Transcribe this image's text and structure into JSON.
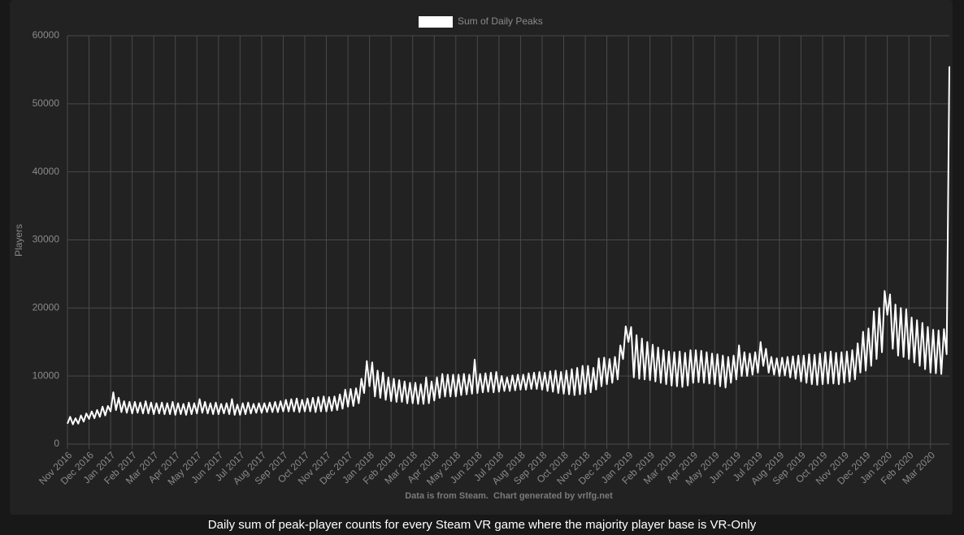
{
  "chart_data": {
    "type": "line",
    "caption": "Daily sum of peak-player counts for every Steam VR game where the majority player base is VR-Only",
    "footer": "Data is from Steam.  Chart generated by vrlfg.net",
    "y_label": "Players",
    "ylim": [
      0,
      60000
    ],
    "yticks": [
      0,
      10000,
      20000,
      30000,
      40000,
      50000,
      60000
    ],
    "grid": true,
    "legend": "top",
    "categories": [
      "Nov 2016",
      null,
      null,
      null,
      null,
      null,
      null,
      null,
      "Dec 2016",
      null,
      null,
      null,
      null,
      null,
      null,
      null,
      "Jan 2017",
      null,
      null,
      null,
      null,
      null,
      null,
      null,
      "Feb 2017",
      null,
      null,
      null,
      null,
      null,
      null,
      null,
      "Mar 2017",
      null,
      null,
      null,
      null,
      null,
      null,
      null,
      "Apr 2017",
      null,
      null,
      null,
      null,
      null,
      null,
      null,
      "May 2017",
      null,
      null,
      null,
      null,
      null,
      null,
      null,
      "Jun 2017",
      null,
      null,
      null,
      null,
      null,
      null,
      null,
      "Jul 2017",
      null,
      null,
      null,
      null,
      null,
      null,
      null,
      "Aug 2017",
      null,
      null,
      null,
      null,
      null,
      null,
      null,
      "Sep 2017",
      null,
      null,
      null,
      null,
      null,
      null,
      null,
      "Oct 2017",
      null,
      null,
      null,
      null,
      null,
      null,
      null,
      "Nov 2017",
      null,
      null,
      null,
      null,
      null,
      null,
      null,
      "Dec 2017",
      null,
      null,
      null,
      null,
      null,
      null,
      null,
      "Jan 2018",
      null,
      null,
      null,
      null,
      null,
      null,
      null,
      "Feb 2018",
      null,
      null,
      null,
      null,
      null,
      null,
      null,
      "Mar 2018",
      null,
      null,
      null,
      null,
      null,
      null,
      null,
      "Apr 2018",
      null,
      null,
      null,
      null,
      null,
      null,
      null,
      "May 2018",
      null,
      null,
      null,
      null,
      null,
      null,
      null,
      "Jun 2018",
      null,
      null,
      null,
      null,
      null,
      null,
      null,
      "Jul 2018",
      null,
      null,
      null,
      null,
      null,
      null,
      null,
      "Aug 2018",
      null,
      null,
      null,
      null,
      null,
      null,
      null,
      "Sep 2018",
      null,
      null,
      null,
      null,
      null,
      null,
      null,
      "Oct 2018",
      null,
      null,
      null,
      null,
      null,
      null,
      null,
      "Nov 2018",
      null,
      null,
      null,
      null,
      null,
      null,
      null,
      "Dec 2018",
      null,
      null,
      null,
      null,
      null,
      null,
      null,
      "Jan 2019",
      null,
      null,
      null,
      null,
      null,
      null,
      null,
      "Feb 2019",
      null,
      null,
      null,
      null,
      null,
      null,
      null,
      "Mar 2019",
      null,
      null,
      null,
      null,
      null,
      null,
      null,
      "Apr 2019",
      null,
      null,
      null,
      null,
      null,
      null,
      null,
      "May 2019",
      null,
      null,
      null,
      null,
      null,
      null,
      null,
      "Jun 2019",
      null,
      null,
      null,
      null,
      null,
      null,
      null,
      "Jul 2019",
      null,
      null,
      null,
      null,
      null,
      null,
      null,
      "Aug 2019",
      null,
      null,
      null,
      null,
      null,
      null,
      null,
      "Sep 2019",
      null,
      null,
      null,
      null,
      null,
      null,
      null,
      "Oct 2019",
      null,
      null,
      null,
      null,
      null,
      null,
      null,
      "Nov 2019",
      null,
      null,
      null,
      null,
      null,
      null,
      null,
      "Dec 2019",
      null,
      null,
      null,
      null,
      null,
      null,
      null,
      "Jan 2020",
      null,
      null,
      null,
      null,
      null,
      null,
      null,
      "Feb 2020",
      null,
      null,
      null,
      null,
      null,
      null,
      null,
      "Mar 2020",
      null,
      null,
      null,
      null,
      null,
      null,
      null
    ],
    "series": [
      {
        "name": "Sum of Daily Peaks",
        "color": "#ffffff",
        "values": [
          3000,
          4000,
          2900,
          3800,
          3000,
          4200,
          3300,
          4500,
          3700,
          4800,
          3800,
          5000,
          4000,
          5500,
          4200,
          5600,
          4800,
          7600,
          5000,
          6800,
          4700,
          6300,
          4600,
          6200,
          4500,
          6200,
          4600,
          6100,
          4500,
          6300,
          4500,
          6100,
          4400,
          6000,
          4500,
          6100,
          4400,
          6000,
          4400,
          6200,
          4300,
          6000,
          4400,
          5900,
          4300,
          6100,
          4400,
          6000,
          4500,
          6600,
          4600,
          6200,
          4500,
          6000,
          4400,
          6100,
          4400,
          5900,
          4500,
          6000,
          4400,
          6600,
          4300,
          5800,
          4300,
          6000,
          4400,
          6100,
          4500,
          5900,
          4600,
          6000,
          4600,
          6000,
          4700,
          6100,
          4700,
          6200,
          4700,
          6300,
          4800,
          6500,
          4800,
          6600,
          4800,
          6700,
          4700,
          6500,
          4800,
          6700,
          4800,
          6800,
          4700,
          6900,
          4800,
          7000,
          4800,
          6900,
          4900,
          7000,
          5000,
          7300,
          5200,
          8000,
          5500,
          8100,
          5600,
          8200,
          6000,
          9600,
          7500,
          12200,
          8500,
          12000,
          7000,
          10800,
          6800,
          10500,
          6500,
          9800,
          6300,
          9600,
          6200,
          9400,
          6200,
          9200,
          6000,
          9000,
          6000,
          9000,
          5900,
          8800,
          5900,
          9800,
          6000,
          9200,
          6400,
          9800,
          6800,
          10300,
          7000,
          10200,
          7000,
          10200,
          7000,
          10200,
          7200,
          10300,
          7300,
          10200,
          7400,
          12400,
          7500,
          10300,
          7600,
          10400,
          7700,
          10500,
          7600,
          10600,
          7700,
          10000,
          7800,
          9800,
          7800,
          10100,
          7900,
          10200,
          8000,
          10200,
          8000,
          10400,
          8100,
          10500,
          8100,
          10600,
          8000,
          10500,
          7800,
          10700,
          7700,
          10800,
          7500,
          10600,
          7400,
          10800,
          7300,
          11000,
          7200,
          11200,
          7300,
          11500,
          7400,
          11500,
          7600,
          11200,
          8000,
          12600,
          8500,
          12700,
          8800,
          12500,
          9000,
          12800,
          9500,
          14500,
          12500,
          17300,
          15000,
          17200,
          9800,
          16000,
          9600,
          15500,
          9500,
          15000,
          9400,
          14600,
          9200,
          14200,
          9000,
          13800,
          8800,
          13600,
          8600,
          13500,
          8500,
          13600,
          8400,
          13400,
          8600,
          13800,
          9000,
          13800,
          9100,
          13700,
          9000,
          13500,
          8900,
          13300,
          8800,
          13200,
          8500,
          13000,
          8300,
          12800,
          9000,
          13000,
          9500,
          14500,
          10000,
          13500,
          10000,
          13300,
          10200,
          13500,
          10500,
          15000,
          11500,
          14000,
          10500,
          12800,
          10200,
          12600,
          10000,
          12700,
          10100,
          12800,
          9800,
          12900,
          9600,
          13000,
          9200,
          13000,
          9000,
          13200,
          8800,
          13100,
          8700,
          13300,
          8800,
          13500,
          8900,
          13600,
          8900,
          13400,
          8800,
          13500,
          9000,
          13600,
          9200,
          13800,
          9500,
          14800,
          10500,
          16500,
          10800,
          17000,
          11500,
          19500,
          12500,
          20000,
          13500,
          22500,
          19000,
          22000,
          14000,
          20500,
          13000,
          20000,
          12800,
          19800,
          12500,
          18600,
          12000,
          18200,
          11500,
          17800,
          11000,
          17200,
          10500,
          16800,
          10400,
          16700,
          10300,
          16900,
          13200,
          55500
        ]
      }
    ]
  }
}
